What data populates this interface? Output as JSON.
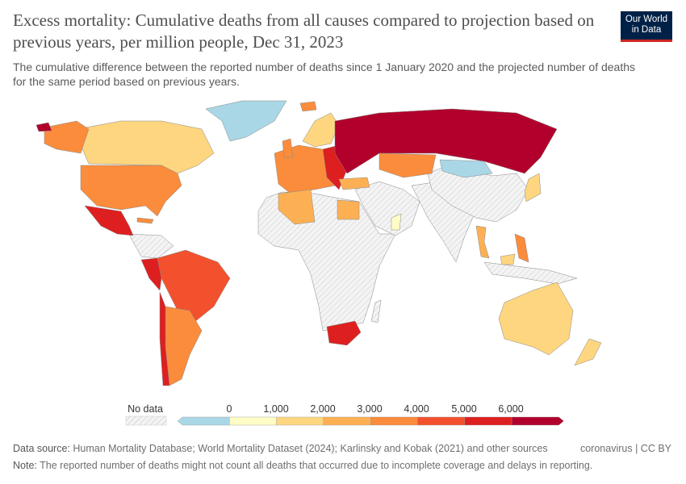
{
  "header": {
    "title": "Excess mortality: Cumulative deaths from all causes compared to projection based on previous years, per million people, Dec 31, 2023",
    "subtitle": "The cumulative difference between the reported number of deaths since 1 January 2020 and the projected number of deaths for the same period based on previous years.",
    "logo": "Our World in Data"
  },
  "legend": {
    "no_data_label": "No data",
    "ticks": [
      "0",
      "1,000",
      "2,000",
      "3,000",
      "4,000",
      "5,000",
      "6,000"
    ],
    "bins": [
      {
        "range": "< 0",
        "color": "#a9d7e6"
      },
      {
        "range": "0–1,000",
        "color": "#fffcc6"
      },
      {
        "range": "1,000–2,000",
        "color": "#fed67f"
      },
      {
        "range": "2,000–3,000",
        "color": "#fdb053"
      },
      {
        "range": "3,000–4,000",
        "color": "#fb8c3c"
      },
      {
        "range": "4,000–5,000",
        "color": "#f3512d"
      },
      {
        "range": "5,000–6,000",
        "color": "#de1f1f"
      },
      {
        "range": "> 6,000",
        "color": "#b1002b"
      }
    ],
    "no_data_color": "#eeeeee"
  },
  "footer": {
    "source_label": "Data source:",
    "source": "Human Mortality Database; World Mortality Dataset (2024); Karlinsky and Kobak (2021) and other sources",
    "license": "coronavirus | CC BY",
    "note_label": "Note:",
    "note": "The reported number of deaths might not count all deaths that occurred due to incomplete coverage and delays in reporting."
  }
}
